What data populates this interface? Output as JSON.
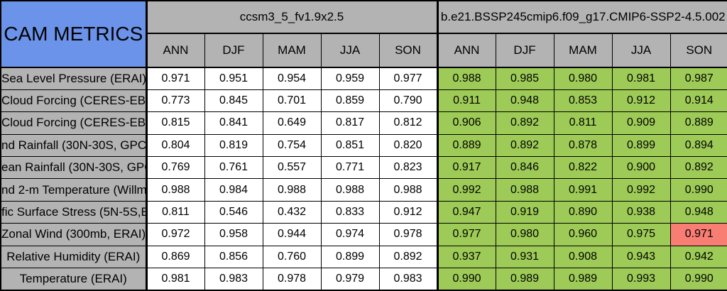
{
  "chart_data": {
    "type": "table",
    "title": "CAM METRICS",
    "column_groups": [
      {
        "model": "ccsm3_5_fv1.9x2.5",
        "seasons": [
          "ANN",
          "DJF",
          "MAM",
          "JJA",
          "SON"
        ]
      },
      {
        "model": "b.e21.BSSP245cmip6.f09_g17.CMIP6-SSP2-4.5.002",
        "seasons": [
          "ANN",
          "DJF",
          "MAM",
          "JJA",
          "SON"
        ]
      }
    ],
    "rows": [
      {
        "label": "Sea Level Pressure (ERAI)",
        "model1": [
          "0.971",
          "0.951",
          "0.954",
          "0.959",
          "0.977"
        ],
        "model2": [
          "0.988",
          "0.985",
          "0.980",
          "0.981",
          "0.987"
        ],
        "model2_cell_colors": [
          "green",
          "green",
          "green",
          "green",
          "green"
        ]
      },
      {
        "label": "Cloud Forcing (CERES-EB",
        "model1": [
          "0.773",
          "0.845",
          "0.701",
          "0.859",
          "0.790"
        ],
        "model2": [
          "0.911",
          "0.948",
          "0.853",
          "0.912",
          "0.914"
        ],
        "model2_cell_colors": [
          "green",
          "green",
          "green",
          "green",
          "green"
        ]
      },
      {
        "label": "Cloud Forcing (CERES-EB",
        "model1": [
          "0.815",
          "0.841",
          "0.649",
          "0.817",
          "0.812"
        ],
        "model2": [
          "0.906",
          "0.892",
          "0.811",
          "0.909",
          "0.889"
        ],
        "model2_cell_colors": [
          "green",
          "green",
          "green",
          "green",
          "green"
        ]
      },
      {
        "label": "nd Rainfall (30N-30S, GPC",
        "model1": [
          "0.804",
          "0.819",
          "0.754",
          "0.851",
          "0.820"
        ],
        "model2": [
          "0.889",
          "0.892",
          "0.878",
          "0.899",
          "0.894"
        ],
        "model2_cell_colors": [
          "green",
          "green",
          "green",
          "green",
          "green"
        ]
      },
      {
        "label": "ean Rainfall (30N-30S, GPC",
        "model1": [
          "0.769",
          "0.761",
          "0.557",
          "0.771",
          "0.823"
        ],
        "model2": [
          "0.917",
          "0.846",
          "0.822",
          "0.900",
          "0.892"
        ],
        "model2_cell_colors": [
          "green",
          "green",
          "green",
          "green",
          "green"
        ]
      },
      {
        "label": "nd 2-m Temperature (Willmo",
        "model1": [
          "0.988",
          "0.984",
          "0.988",
          "0.988",
          "0.988"
        ],
        "model2": [
          "0.992",
          "0.988",
          "0.991",
          "0.992",
          "0.990"
        ],
        "model2_cell_colors": [
          "green",
          "green",
          "green",
          "green",
          "green"
        ]
      },
      {
        "label": "fic Surface Stress (5N-5S,E",
        "model1": [
          "0.811",
          "0.546",
          "0.432",
          "0.833",
          "0.912"
        ],
        "model2": [
          "0.947",
          "0.919",
          "0.890",
          "0.938",
          "0.948"
        ],
        "model2_cell_colors": [
          "green",
          "green",
          "green",
          "green",
          "green"
        ]
      },
      {
        "label": "Zonal Wind (300mb, ERAI)",
        "model1": [
          "0.972",
          "0.958",
          "0.944",
          "0.974",
          "0.978"
        ],
        "model2": [
          "0.977",
          "0.980",
          "0.960",
          "0.975",
          "0.971"
        ],
        "model2_cell_colors": [
          "green",
          "green",
          "green",
          "green",
          "red"
        ]
      },
      {
        "label": "Relative Humidity (ERAI)",
        "model1": [
          "0.869",
          "0.856",
          "0.760",
          "0.899",
          "0.892"
        ],
        "model2": [
          "0.937",
          "0.931",
          "0.908",
          "0.943",
          "0.942"
        ],
        "model2_cell_colors": [
          "green",
          "green",
          "green",
          "green",
          "green"
        ]
      },
      {
        "label": "Temperature (ERAI)",
        "model1": [
          "0.981",
          "0.983",
          "0.978",
          "0.979",
          "0.983"
        ],
        "model2": [
          "0.990",
          "0.989",
          "0.989",
          "0.993",
          "0.990"
        ],
        "model2_cell_colors": [
          "green",
          "green",
          "green",
          "green",
          "green"
        ]
      }
    ],
    "colors": {
      "corner_bg": "#6b93e9",
      "header_bg": "#b3b3b3",
      "default_cell_bg": "#ffffff",
      "green_cell_bg": "#9ecb57",
      "red_cell_bg": "#f87d72",
      "grid_line": "#000000",
      "text": "#000000"
    }
  }
}
